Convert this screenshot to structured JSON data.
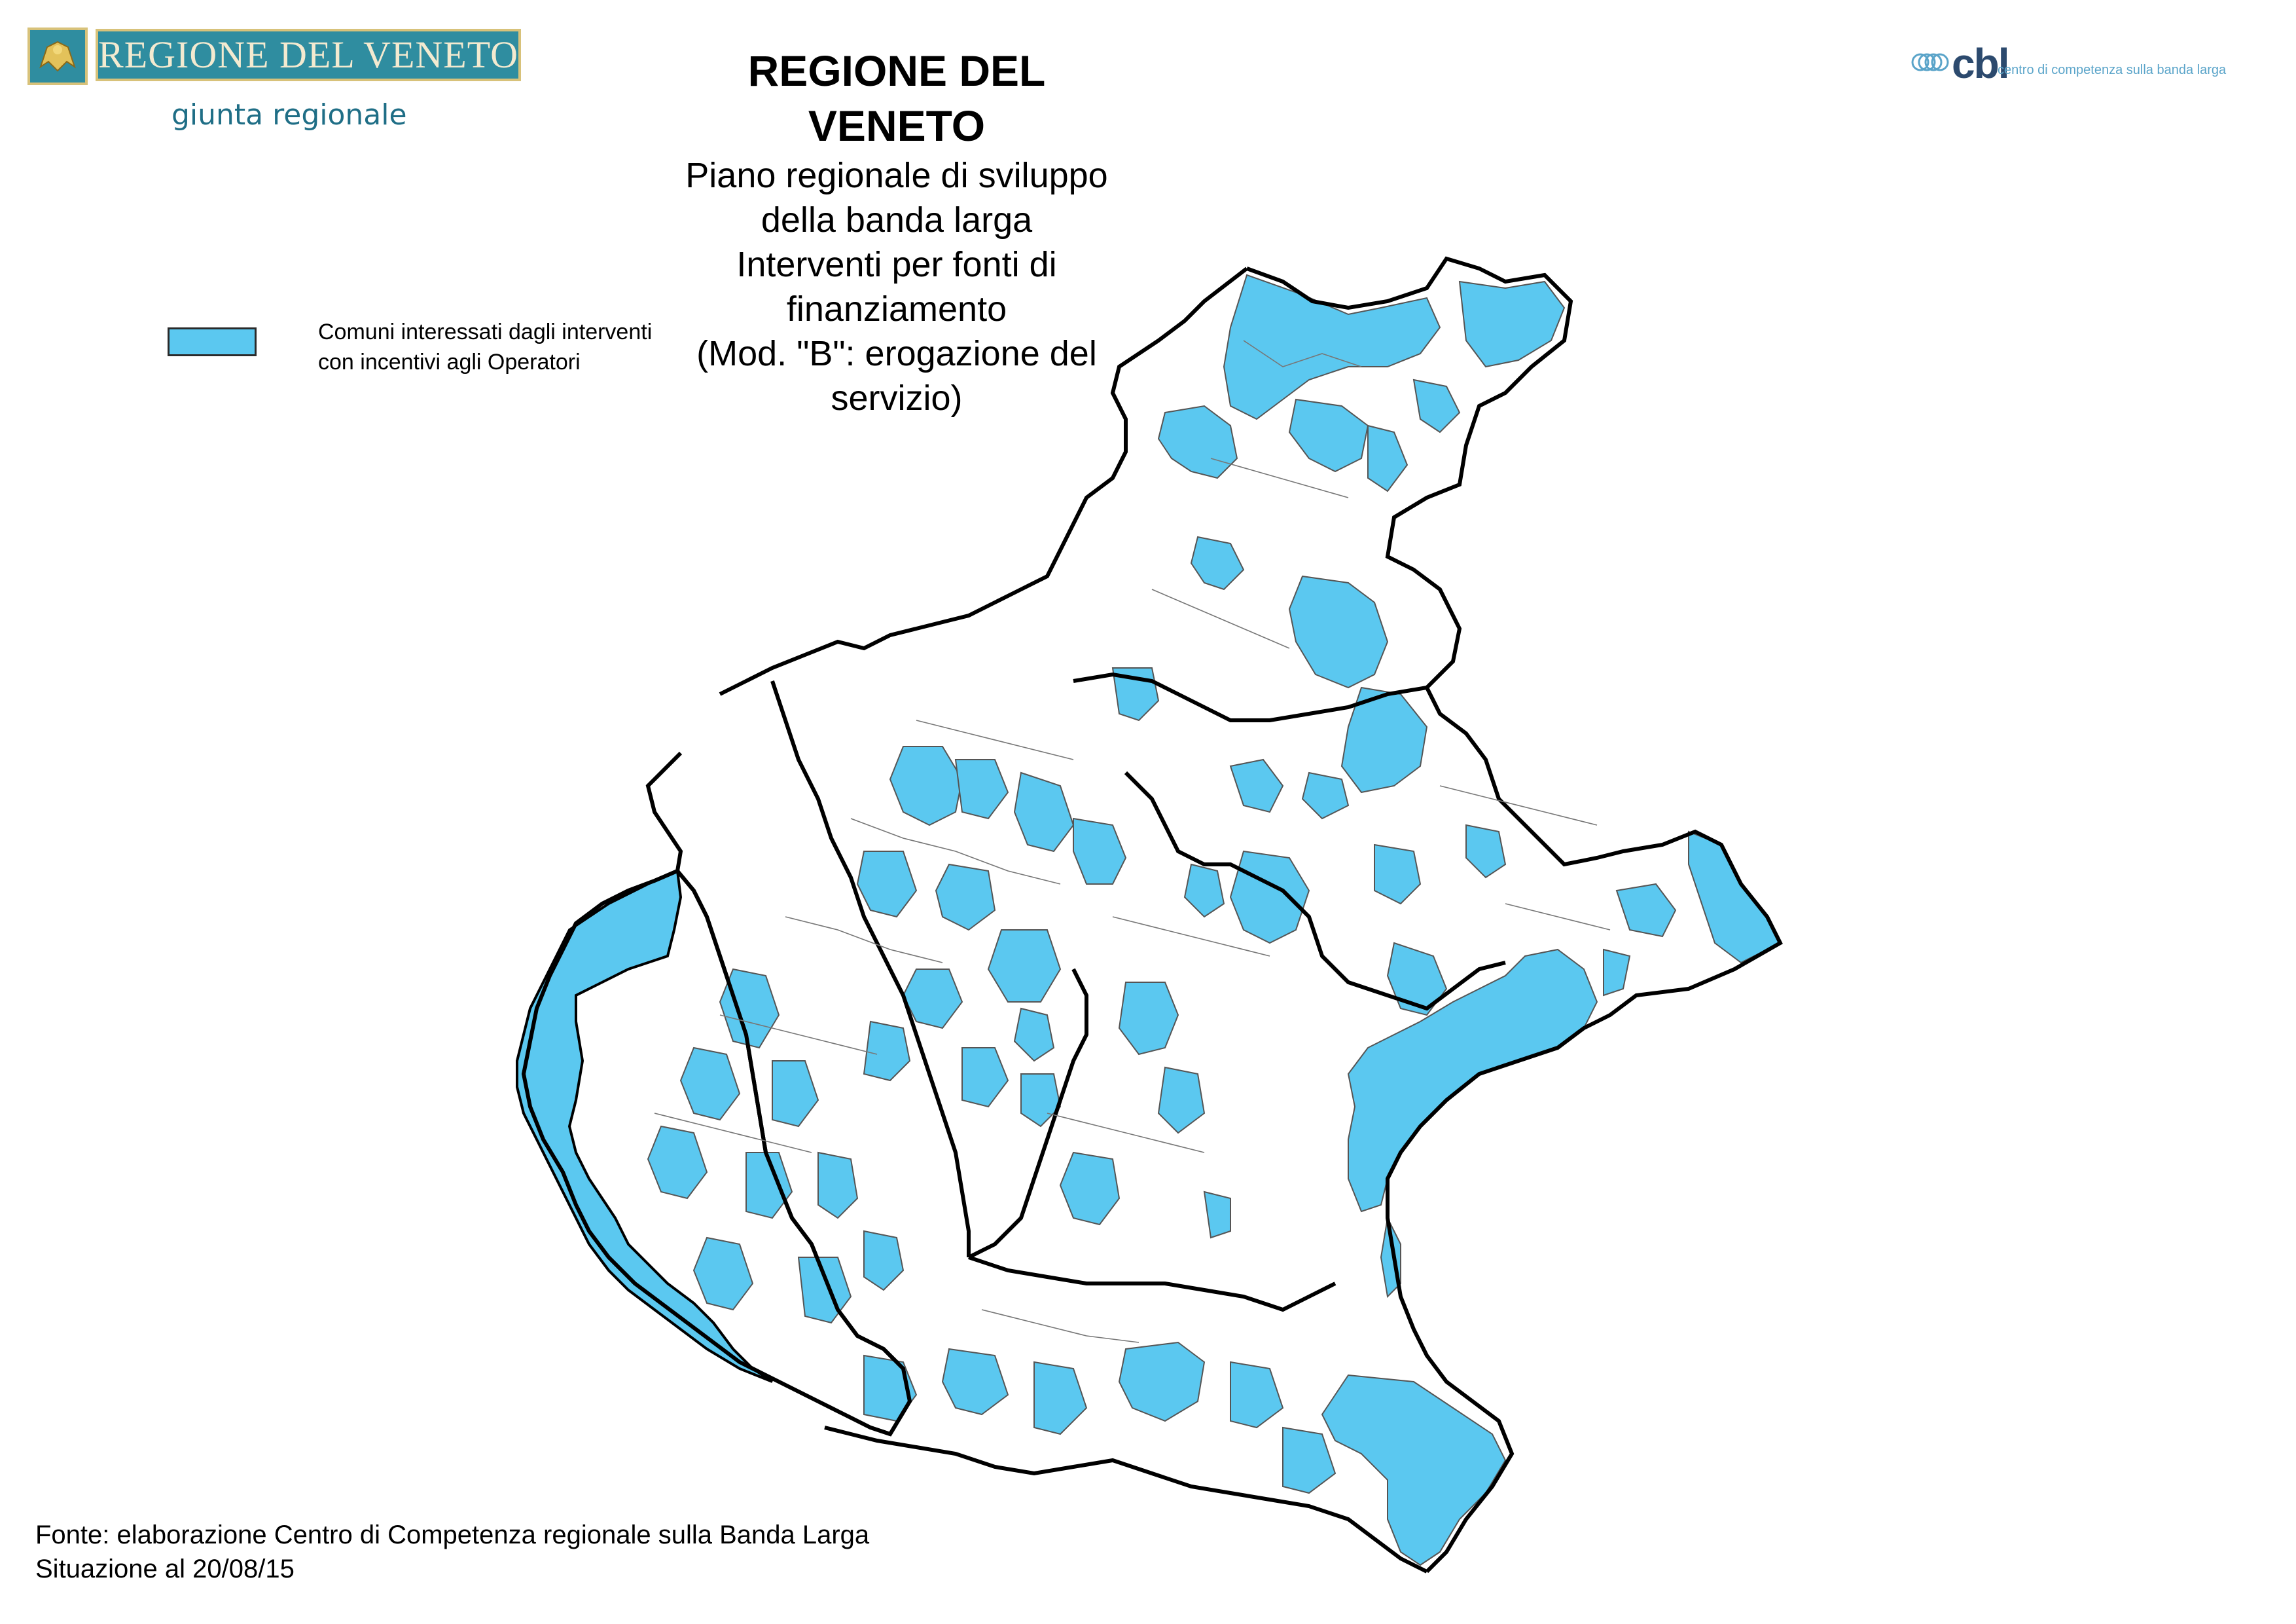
{
  "logo_left": {
    "name": "REGIONE DEL VENETO",
    "subtitle": "giunta regionale"
  },
  "logo_right": {
    "mark": "cbl",
    "tagline": "centro di competenza sulla banda larga"
  },
  "title": {
    "main": "REGIONE DEL VENETO",
    "line1": "Piano regionale di sviluppo della banda larga",
    "line2": "Interventi per fonti di finanziamento",
    "line3": "(Mod. \"B\": erogazione del servizio)"
  },
  "legend": {
    "line1": "Comuni interessati dagli interventi",
    "line2": "con incentivi agli Operatori",
    "color": "#5bc8f0"
  },
  "source": {
    "line1": "Fonte: elaborazione Centro di Competenza regionale sulla Banda Larga",
    "line2": "Situazione al 20/08/15"
  },
  "map_style": {
    "highlight_color": "#5bc8f0",
    "base_color": "#ffffff",
    "province_border_color": "#000000",
    "municipality_border_color": "#555555"
  }
}
